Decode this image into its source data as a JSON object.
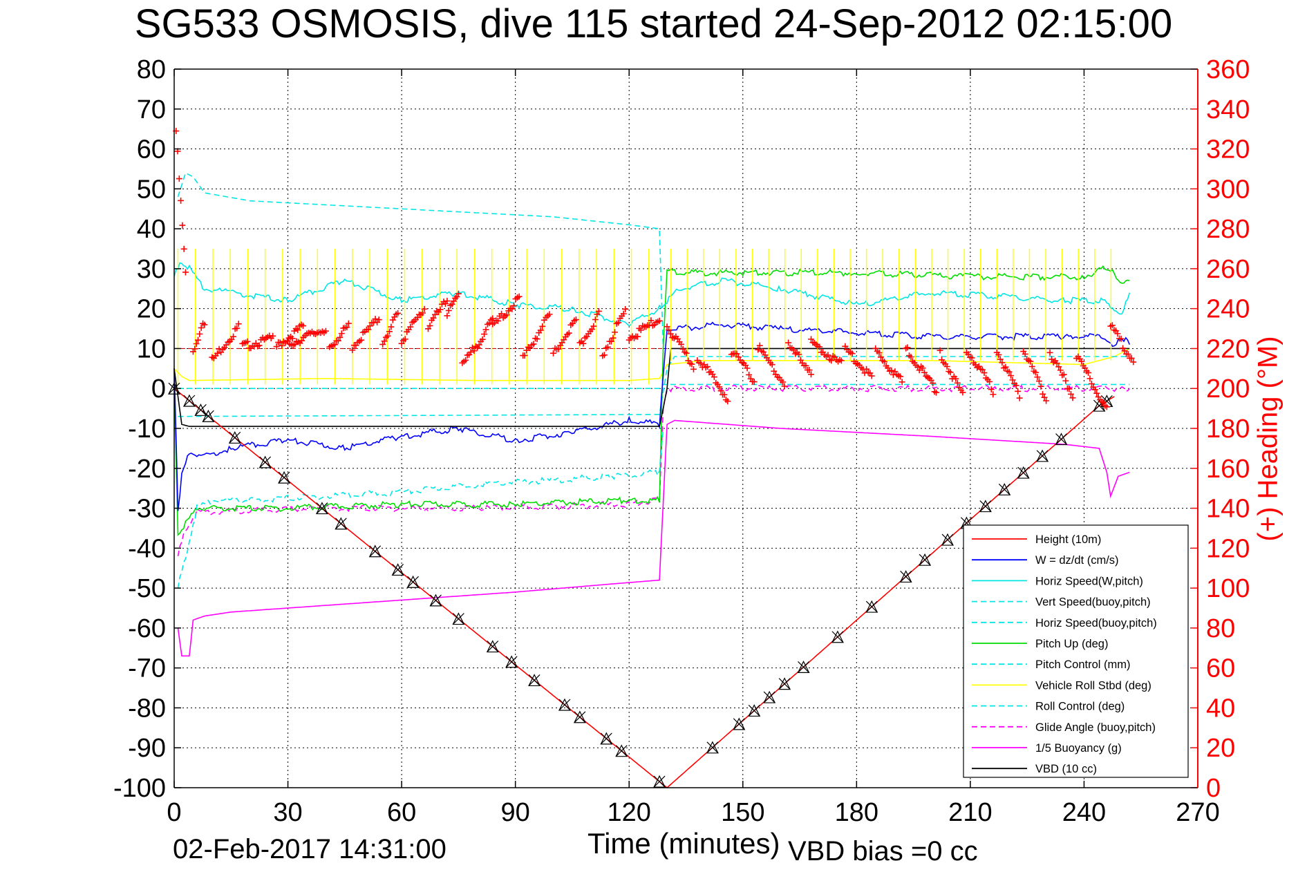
{
  "chart_data": {
    "type": "line",
    "title": "SG533 OSMOSIS, dive 115 started 24-Sep-2012 02:15:00",
    "xlabel": "Time (minutes)",
    "ylabel_right": "(+) Heading (°M)",
    "footer_date": "02-Feb-2017 14:31:00",
    "footer_bias": "VBD bias =0 cc",
    "xlim": [
      0,
      270
    ],
    "ylim_left": [
      -100,
      80
    ],
    "ylim_right": [
      0,
      360
    ],
    "x_ticks": [
      "0",
      "30",
      "60",
      "90",
      "120",
      "150",
      "180",
      "210",
      "240",
      "270"
    ],
    "y_left_ticks": [
      "80",
      "70",
      "60",
      "50",
      "40",
      "30",
      "20",
      "10",
      "0",
      "-10",
      "-20",
      "-30",
      "-40",
      "-50",
      "-60",
      "-70",
      "-80",
      "-90",
      "-100"
    ],
    "y_right_ticks": [
      "360",
      "340",
      "320",
      "300",
      "280",
      "260",
      "240",
      "220",
      "200",
      "180",
      "160",
      "140",
      "120",
      "100",
      "80",
      "60",
      "40",
      "20",
      "0"
    ],
    "grid": true,
    "legend_position": "bottom-right",
    "colors": {
      "height": "#ff0000",
      "w": "#0000ff",
      "horiz_speed": "#00e5e5",
      "pitch": "#00dd00",
      "roll": "#ffff00",
      "glide": "#ff00ff",
      "buoyancy": "#ff00ff",
      "vbd": "#000000",
      "heading": "#ff0000",
      "right_axis": "#ff0000"
    },
    "series": [
      {
        "name": "Height (10m)",
        "key": "height",
        "style": "solid",
        "markers": "triangles",
        "x": [
          0,
          130,
          244,
          248
        ],
        "y": [
          0,
          -100,
          -4.3,
          -2
        ]
      },
      {
        "name": "W = dz/dt (cm/s)",
        "key": "w",
        "style": "solid",
        "x": [
          0,
          1,
          2,
          4,
          8,
          15,
          30,
          45,
          60,
          75,
          90,
          105,
          120,
          128,
          130,
          133,
          145,
          160,
          180,
          200,
          220,
          235,
          245,
          248,
          250,
          252
        ],
        "y": [
          5,
          -30,
          -22,
          -16,
          -17,
          -15,
          -13,
          -15,
          -12,
          -10,
          -13,
          -11,
          -8,
          -9,
          15,
          15,
          16,
          15,
          14,
          13,
          13,
          13,
          13,
          10,
          13,
          11
        ]
      },
      {
        "name": "Horiz Speed(W,pitch)",
        "key": "horiz_speed",
        "style": "solid",
        "x": [
          0,
          2,
          4,
          8,
          15,
          30,
          45,
          60,
          75,
          90,
          105,
          120,
          128,
          130,
          133,
          145,
          160,
          180,
          200,
          220,
          235,
          245,
          248,
          250,
          252
        ],
        "y": [
          28,
          32,
          30,
          25,
          24,
          22,
          27,
          22,
          24,
          21,
          20,
          16,
          20,
          22,
          25,
          27,
          25,
          21,
          24,
          23,
          22,
          22,
          20,
          18,
          24
        ]
      },
      {
        "name": "Vert Speed(buoy,pitch)",
        "key": "vert_speed",
        "style": "dashed",
        "x": [
          1,
          3,
          6,
          10,
          20,
          40,
          60,
          80,
          100,
          115,
          128,
          129
        ],
        "y": [
          -50,
          -42,
          -30,
          -28,
          -28,
          -27,
          -26,
          -24,
          -23,
          -22,
          -21,
          -10
        ]
      },
      {
        "name": "Horiz Speed(buoy,pitch)",
        "key": "horiz_speed_buoy",
        "style": "dashed",
        "x": [
          1,
          3,
          5,
          8,
          20,
          40,
          60,
          80,
          100,
          120,
          128,
          129
        ],
        "y": [
          48,
          54,
          53,
          49,
          47,
          46,
          45,
          44,
          43,
          41,
          40,
          10
        ]
      },
      {
        "name": "Pitch Up (deg)",
        "key": "pitch",
        "style": "solid",
        "x": [
          0,
          1,
          3,
          6,
          10,
          30,
          60,
          90,
          120,
          128,
          129,
          130,
          132,
          150,
          180,
          210,
          240,
          245,
          248,
          250,
          252
        ],
        "y": [
          0,
          -36,
          -34,
          -30,
          -30,
          -30,
          -29,
          -29,
          -28,
          -28,
          10,
          30,
          29,
          29,
          29,
          28,
          28,
          30,
          29,
          26,
          27
        ]
      },
      {
        "name": "Pitch Control (mm)",
        "key": "pitch_control",
        "style": "dashed",
        "x": [
          1,
          3,
          128,
          130,
          132,
          250,
          252
        ],
        "y": [
          -7,
          -7,
          -6.5,
          5,
          8,
          8,
          8
        ]
      },
      {
        "name": "Vehicle Roll Stbd (deg)",
        "key": "roll",
        "style": "solid",
        "x": [
          0,
          2,
          4,
          40,
          80,
          120,
          128,
          130,
          140,
          200,
          240,
          248,
          252
        ],
        "y": [
          5,
          3,
          2,
          2.5,
          2,
          2,
          2.5,
          6,
          7,
          7,
          6,
          8,
          10
        ]
      },
      {
        "name": "Roll Control (deg)",
        "key": "roll_control",
        "style": "dashed",
        "x": [
          1,
          128,
          129,
          252
        ],
        "y": [
          0,
          0,
          1,
          1
        ]
      },
      {
        "name": "Glide Angle (buoy,pitch)",
        "key": "glide",
        "style": "dashed",
        "x": [
          1,
          3,
          6,
          10,
          40,
          80,
          120,
          128,
          129,
          130,
          250,
          252
        ],
        "y": [
          -42,
          -35,
          -31,
          -31,
          -30,
          -30,
          -29,
          -28,
          -5,
          0,
          0,
          0
        ]
      },
      {
        "name": "1/5 Buoyancy (g)",
        "key": "buoyancy",
        "style": "solid",
        "x": [
          1,
          2,
          4,
          5,
          8,
          15,
          30,
          60,
          90,
          115,
          128,
          130,
          132,
          160,
          200,
          235,
          244,
          246,
          247,
          249,
          252
        ],
        "y": [
          -60,
          -67,
          -67,
          -58,
          -57,
          -56,
          -55,
          -53,
          -51,
          -49,
          -48,
          -9,
          -8,
          -10,
          -12,
          -14,
          -15,
          -21,
          -27,
          -22,
          -21
        ]
      },
      {
        "name": "VBD (10 cc)",
        "key": "vbd",
        "style": "solid",
        "x": [
          0,
          2,
          4,
          128,
          129,
          130,
          131,
          250,
          252
        ],
        "y": [
          5,
          -9,
          -9.5,
          -9.5,
          -5,
          0,
          10,
          10,
          10
        ]
      }
    ],
    "heading_series": {
      "name": "(+) Heading (°M)",
      "axis": "right",
      "reference_deg": 220,
      "segments": [
        {
          "x0": 0.5,
          "x1": 3,
          "y0": 330,
          "y1": 258
        },
        {
          "x0": 5,
          "x1": 8,
          "y0": 218,
          "y1": 234
        },
        {
          "x0": 10,
          "x1": 17,
          "y0": 215,
          "y1": 232
        },
        {
          "x0": 18,
          "x1": 26,
          "y0": 222,
          "y1": 226
        },
        {
          "x0": 27,
          "x1": 34,
          "y0": 222,
          "y1": 232
        },
        {
          "x0": 30,
          "x1": 40,
          "y0": 223,
          "y1": 231
        },
        {
          "x0": 41,
          "x1": 46,
          "y0": 222,
          "y1": 232
        },
        {
          "x0": 47,
          "x1": 54,
          "y0": 222,
          "y1": 236
        },
        {
          "x0": 55,
          "x1": 59,
          "y0": 224,
          "y1": 238
        },
        {
          "x0": 60,
          "x1": 66,
          "y0": 225,
          "y1": 241
        },
        {
          "x0": 67,
          "x1": 72,
          "y0": 232,
          "y1": 245
        },
        {
          "x0": 72,
          "x1": 75,
          "y0": 238,
          "y1": 248
        },
        {
          "x0": 76,
          "x1": 84,
          "y0": 212,
          "y1": 235
        },
        {
          "x0": 84,
          "x1": 91,
          "y0": 232,
          "y1": 246
        },
        {
          "x0": 92,
          "x1": 99,
          "y0": 216,
          "y1": 238
        },
        {
          "x0": 100,
          "x1": 106,
          "y0": 218,
          "y1": 235
        },
        {
          "x0": 107,
          "x1": 112,
          "y0": 222,
          "y1": 238
        },
        {
          "x0": 113,
          "x1": 119,
          "y0": 218,
          "y1": 240
        },
        {
          "x0": 120,
          "x1": 128,
          "y0": 226,
          "y1": 236
        },
        {
          "x0": 130,
          "x1": 137,
          "y0": 232,
          "y1": 212
        },
        {
          "x0": 138,
          "x1": 146,
          "y0": 217,
          "y1": 196
        },
        {
          "x0": 147,
          "x1": 153,
          "y0": 220,
          "y1": 205
        },
        {
          "x0": 154,
          "x1": 161,
          "y0": 222,
          "y1": 203
        },
        {
          "x0": 162,
          "x1": 168,
          "y0": 222,
          "y1": 210
        },
        {
          "x0": 168,
          "x1": 176,
          "y0": 224,
          "y1": 213
        },
        {
          "x0": 177,
          "x1": 184,
          "y0": 221,
          "y1": 207
        },
        {
          "x0": 185,
          "x1": 192,
          "y0": 220,
          "y1": 204
        },
        {
          "x0": 193,
          "x1": 201,
          "y0": 221,
          "y1": 200
        },
        {
          "x0": 202,
          "x1": 208,
          "y0": 219,
          "y1": 198
        },
        {
          "x0": 209,
          "x1": 216,
          "y0": 221,
          "y1": 200
        },
        {
          "x0": 217,
          "x1": 223,
          "y0": 220,
          "y1": 197
        },
        {
          "x0": 224,
          "x1": 230,
          "y0": 221,
          "y1": 196
        },
        {
          "x0": 231,
          "x1": 237,
          "y0": 219,
          "y1": 198
        },
        {
          "x0": 238,
          "x1": 246,
          "y0": 218,
          "y1": 190
        },
        {
          "x0": 247,
          "x1": 253,
          "y0": 232,
          "y1": 215
        }
      ]
    }
  }
}
